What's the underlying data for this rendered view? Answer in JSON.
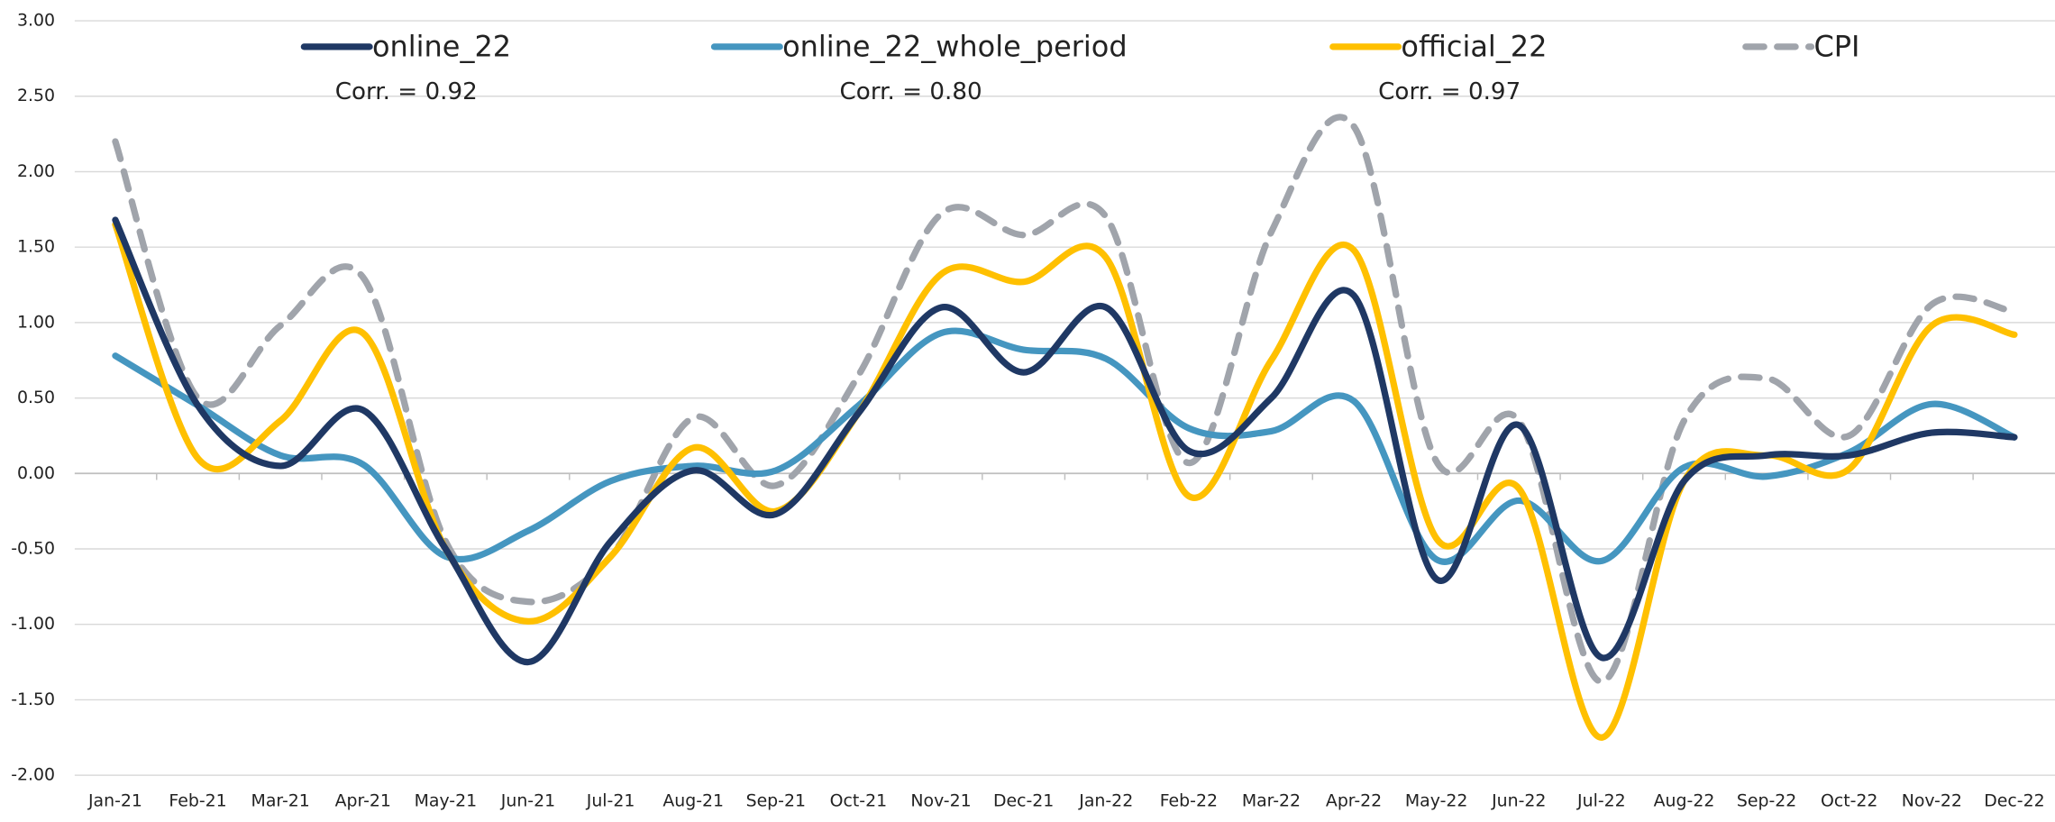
{
  "chart_data": {
    "type": "line",
    "categories": [
      "Jan-21",
      "Feb-21",
      "Mar-21",
      "Apr-21",
      "May-21",
      "Jun-21",
      "Jul-21",
      "Aug-21",
      "Sep-21",
      "Oct-21",
      "Nov-21",
      "Dec-21",
      "Jan-22",
      "Feb-22",
      "Mar-22",
      "Apr-22",
      "May-22",
      "Jun-22",
      "Jul-22",
      "Aug-22",
      "Sep-22",
      "Oct-22",
      "Nov-22",
      "Dec-22"
    ],
    "series": [
      {
        "name": "online_22",
        "color": "#1f3864",
        "style": "solid",
        "values": [
          1.68,
          0.45,
          0.05,
          0.42,
          -0.5,
          -1.25,
          -0.45,
          0.02,
          -0.27,
          0.4,
          1.1,
          0.67,
          1.1,
          0.15,
          0.5,
          1.18,
          -0.7,
          0.32,
          -1.22,
          -0.05,
          0.12,
          0.12,
          0.27,
          0.24
        ]
      },
      {
        "name": "online_22_whole_period",
        "color": "#4596c0",
        "style": "solid",
        "values": [
          0.78,
          0.45,
          0.12,
          0.06,
          -0.55,
          -0.38,
          -0.05,
          0.05,
          0.02,
          0.45,
          0.93,
          0.82,
          0.76,
          0.3,
          0.28,
          0.48,
          -0.57,
          -0.18,
          -0.58,
          0.04,
          -0.02,
          0.14,
          0.46,
          0.24
        ]
      },
      {
        "name": "official_22",
        "color": "#ffc000",
        "style": "solid",
        "values": [
          1.65,
          0.1,
          0.35,
          0.93,
          -0.5,
          -0.98,
          -0.55,
          0.17,
          -0.25,
          0.4,
          1.32,
          1.27,
          1.43,
          -0.15,
          0.75,
          1.48,
          -0.43,
          -0.1,
          -1.75,
          -0.05,
          0.12,
          0.03,
          0.98,
          0.92
        ]
      },
      {
        "name": "CPI",
        "color": "#a0a4ab",
        "style": "dashed",
        "values": [
          2.2,
          0.5,
          0.98,
          1.3,
          -0.45,
          -0.85,
          -0.55,
          0.37,
          -0.08,
          0.65,
          1.72,
          1.58,
          1.7,
          0.07,
          1.6,
          2.3,
          0.08,
          0.35,
          -1.38,
          0.35,
          0.63,
          0.25,
          1.12,
          1.07
        ]
      }
    ],
    "annotations": [
      "Corr. = 0.92",
      "Corr. = 0.80",
      "Corr. = 0.97"
    ],
    "ylim": [
      -2,
      3
    ],
    "yticks": [
      {
        "value": -2,
        "label": "-2.00"
      },
      {
        "value": -1.5,
        "label": "-1.50"
      },
      {
        "value": -1,
        "label": "-1.00"
      },
      {
        "value": -0.5,
        "label": "-0.50"
      },
      {
        "value": 0,
        "label": "0.00"
      },
      {
        "value": 0.5,
        "label": "0.50"
      },
      {
        "value": 1,
        "label": "1.00"
      },
      {
        "value": 1.5,
        "label": "1.50"
      },
      {
        "value": 2,
        "label": "2.00"
      },
      {
        "value": 2.5,
        "label": "2.50"
      },
      {
        "value": 3,
        "label": "3.00"
      }
    ],
    "grid": true,
    "legend": "top"
  }
}
